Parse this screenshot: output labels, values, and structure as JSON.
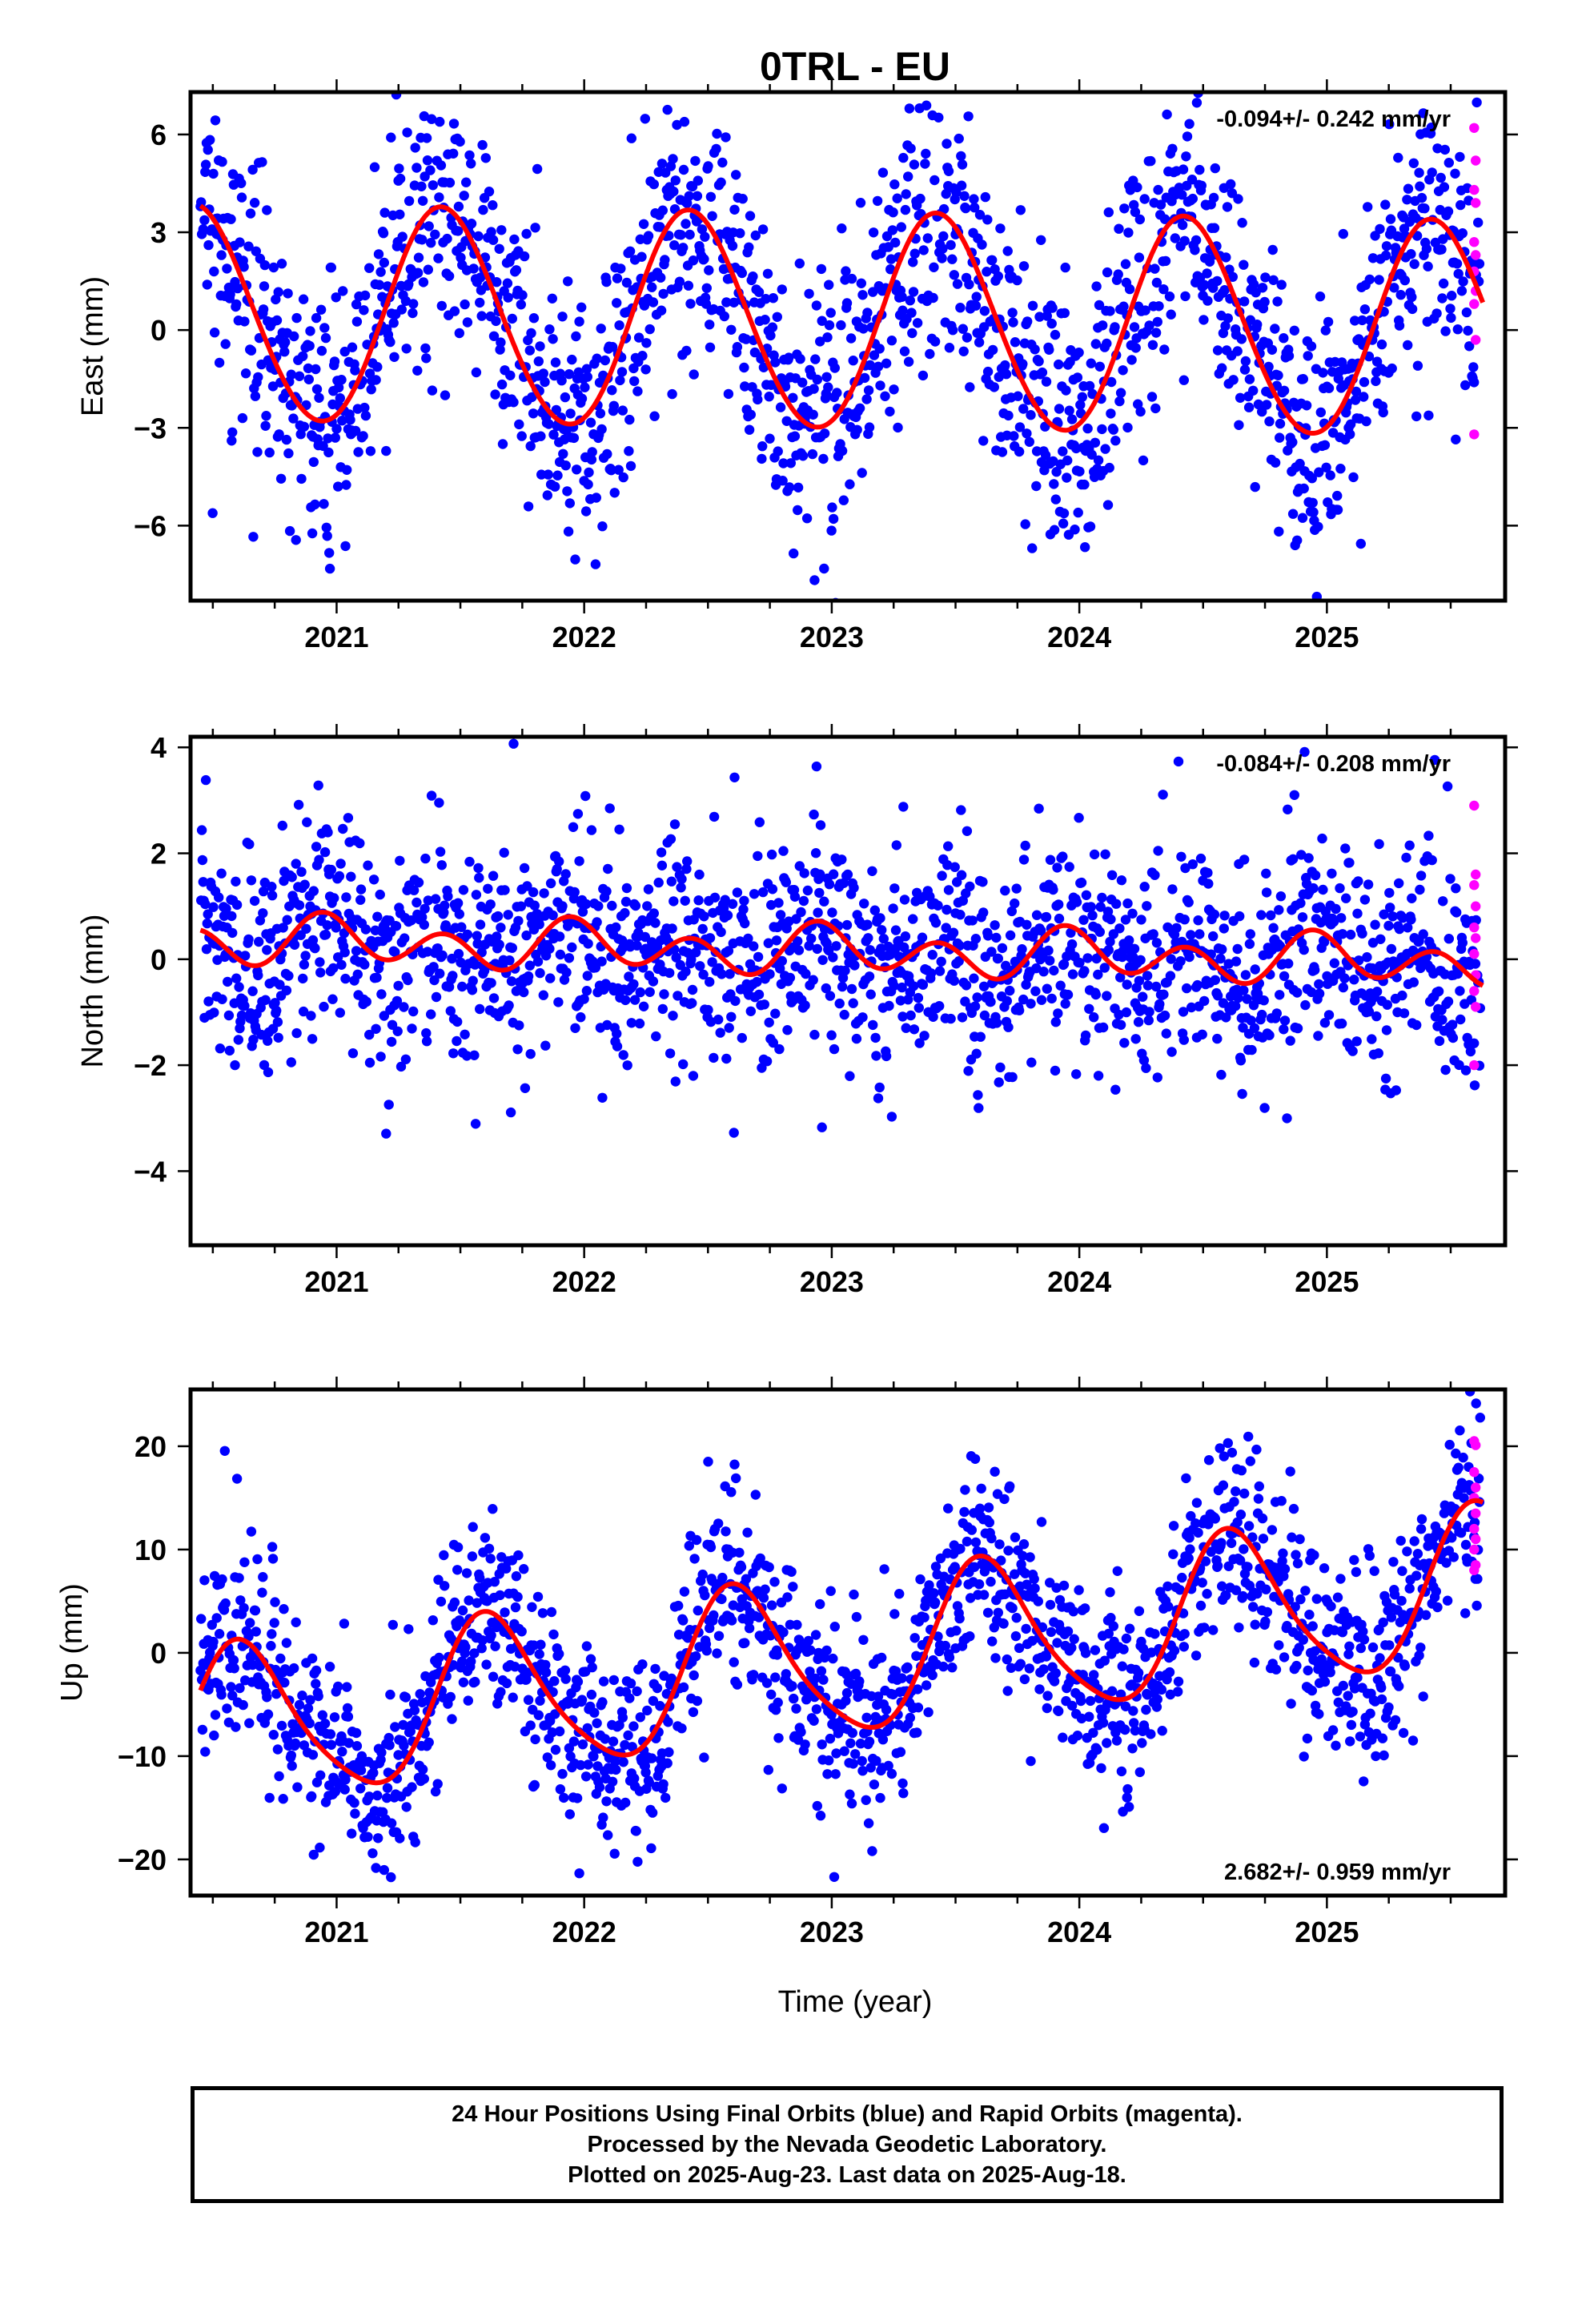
{
  "title": "0TRL - EU",
  "xlabel": "Time (year)",
  "footer": {
    "line1": "24 Hour Positions Using Final Orbits (blue) and Rapid Orbits (magenta).",
    "line2": "Processed by the Nevada Geodetic Laboratory.",
    "line3": "Plotted on 2025-Aug-23. Last data on 2025-Aug-18."
  },
  "colors": {
    "final_orbits": "#0000ff",
    "rapid_orbits": "#ff00ff",
    "model": "#ff0000",
    "frame": "#000000"
  },
  "chart_data": [
    {
      "type": "scatter",
      "ylabel": "East (mm)",
      "rate_text": "-0.094+/- 0.242 mm/yr",
      "xlim": [
        2020.41,
        2025.72
      ],
      "ylim": [
        -8.3,
        7.3
      ],
      "xticks": [
        "2021",
        "2022",
        "2023",
        "2024",
        "2025"
      ],
      "yticks": [
        6,
        3,
        0,
        -3,
        -6
      ],
      "ytick_labels": [
        "6",
        "3",
        "0",
        "−3",
        "−6"
      ],
      "model": {
        "description": "annual sinusoid plus linear rate",
        "offset": 0.22,
        "rate": -0.094,
        "amp": 3.3,
        "amp2": 0.15,
        "peak_phase": 0.43
      },
      "final_orbits_scatter": 2.0,
      "rapid_orbits_y": [
        6.2,
        5.2,
        4.3,
        3.9,
        2.7,
        2.3,
        1.8,
        1.2,
        0.8,
        -0.3,
        -3.2
      ]
    },
    {
      "type": "scatter",
      "ylabel": "North (mm)",
      "rate_text": "-0.084+/- 0.208 mm/yr",
      "xlim": [
        2020.41,
        2025.72
      ],
      "ylim": [
        -5.4,
        4.2
      ],
      "xticks": [
        "2021",
        "2022",
        "2023",
        "2024",
        "2025"
      ],
      "yticks": [
        4,
        2,
        0,
        -2,
        -4
      ],
      "ytick_labels": [
        "4",
        "2",
        "0",
        "−2",
        "−4"
      ],
      "model": {
        "description": "annual + semi-annual sinusoid plus linear rate",
        "offset": 0.15,
        "rate": -0.084,
        "amp": 0.2,
        "amp2": 0.38,
        "peak_phase": 0.0
      },
      "final_orbits_scatter": 1.0,
      "rapid_orbits_y": [
        2.9,
        1.6,
        1.4,
        1.0,
        0.6,
        0.4,
        0.1,
        -0.3,
        -0.6,
        -0.9,
        -2.0
      ]
    },
    {
      "type": "scatter",
      "ylabel": "Up (mm)",
      "rate_text": "2.682+/- 0.959 mm/yr",
      "xlim": [
        2020.41,
        2025.72
      ],
      "ylim": [
        -23.5,
        25.5
      ],
      "xticks": [
        "2021",
        "2022",
        "2023",
        "2024",
        "2025"
      ],
      "yticks": [
        20,
        10,
        0,
        -10,
        -20
      ],
      "ytick_labels": [
        "20",
        "10",
        "0",
        "−10",
        "−20"
      ],
      "model": {
        "description": "annual + semi-annual sinusoid plus linear rate",
        "offset": -0.7,
        "rate": 2.682,
        "amp": 7.5,
        "amp2": 1.2,
        "peak_phase": 0.62
      },
      "final_orbits_scatter": 4.5,
      "rapid_orbits_y": [
        20.5,
        20.1,
        17.5,
        16.0,
        15.0,
        13.5,
        12.0,
        11.0,
        10.0,
        8.5,
        8.0
      ]
    }
  ]
}
